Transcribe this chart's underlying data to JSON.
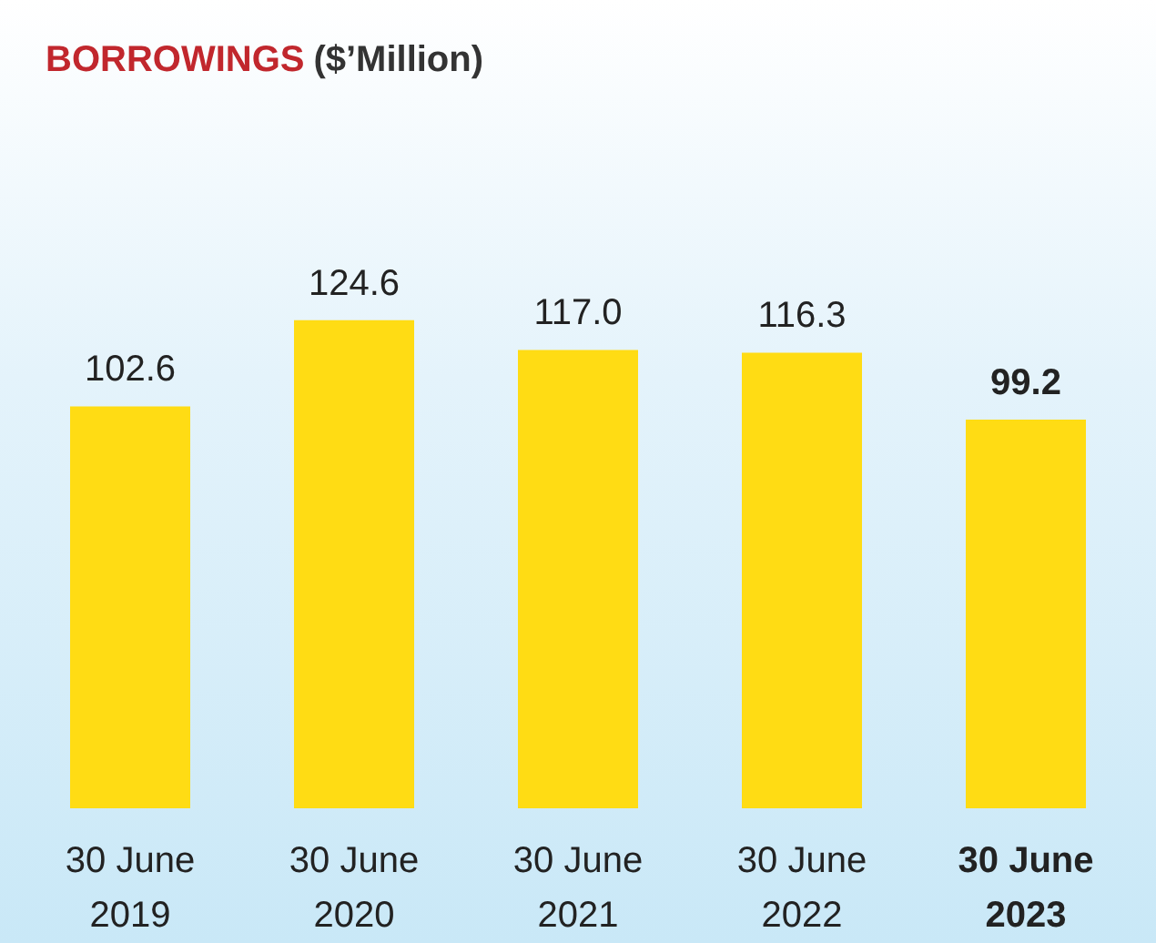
{
  "chart_data": {
    "type": "bar",
    "title": "BORROWINGS",
    "subtitle": "($’Million)",
    "categories": [
      "30 June\n2019",
      "30 June\n2020",
      "30 June\n2021",
      "30 June\n2022",
      "30 June\n2023"
    ],
    "values": [
      102.6,
      124.6,
      117.0,
      116.3,
      99.2
    ],
    "value_labels": [
      "102.6",
      "124.6",
      "117.0",
      "116.3",
      "99.2"
    ],
    "color": "#ffdc14"
  }
}
